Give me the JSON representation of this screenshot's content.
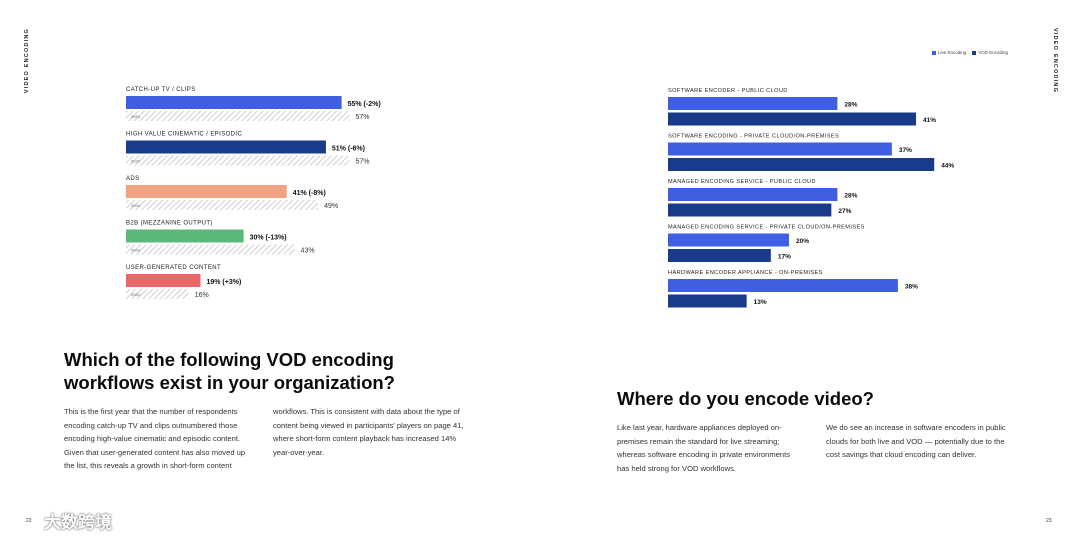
{
  "side_label": "VIDEO ENCODING",
  "page_numbers": {
    "left": "22",
    "right": "23"
  },
  "watermark": "大数跨境",
  "colors": {
    "catchup": "#3f5ee0",
    "cinematic": "#1a3a8a",
    "ads": "#f1a283",
    "b2b": "#5cb77a",
    "ugc": "#e8676b",
    "live": "#3f5ee0",
    "vod": "#1a3a8a",
    "prev_year_hatch": "#c8c8c8"
  },
  "left_section": {
    "heading": "Which of the following VOD encoding workflows exist in your organization?",
    "body_col1": "This is the first year that the number of respondents encoding catch-up TV and clips outnumbered those encoding high-value cinematic and episodic content. Given that user-generated content has also moved up the list, this reveals a growth in short-form content",
    "body_col2": "workflows. This is consistent with data about the type of content being viewed in participants' players on page 41, where short-form content playback has increased 14% year-over-year."
  },
  "right_section": {
    "heading": "Where do you encode video?",
    "body_col1": "Like last year, hardware appliances deployed on-premises remain the standard for live streaming; whereas software encoding in private environments has held strong for VOD workflows.",
    "body_col2": "We do see an increase in software encoders in public clouds for both live and VOD — potentially due to the cost savings that cloud encoding can deliver."
  },
  "chart_data": [
    {
      "type": "bar",
      "orientation": "horizontal",
      "title": "Which of the following VOD encoding workflows exist in your organization?",
      "categories": [
        "CATCH-UP TV / CLIPS",
        "HIGH VALUE CINEMATIC / EPISODIC",
        "ADS",
        "B2B (MEZZANINE OUTPUT)",
        "USER-GENERATED CONTENT"
      ],
      "series": [
        {
          "name": "2025",
          "values": [
            55,
            51,
            41,
            30,
            19
          ],
          "labels": [
            "55% (-2%)",
            "51% (-6%)",
            "41% (-8%)",
            "30% (-13%)",
            "19% (+3%)"
          ]
        },
        {
          "name": "2024",
          "values": [
            57,
            57,
            49,
            43,
            16
          ],
          "labels": [
            "57%",
            "57%",
            "49%",
            "43%",
            "16%"
          ]
        }
      ],
      "xlim": [
        0,
        100
      ]
    },
    {
      "type": "bar",
      "orientation": "horizontal",
      "title": "Where do you encode video?",
      "categories": [
        "SOFTWARE ENCODER - PUBLIC CLOUD",
        "SOFTWARE ENCODING - PRIVATE CLOUD/ON-PREMISES",
        "MANAGED ENCODING SERVICE - PUBLIC CLOUD",
        "MANAGED ENCODING SERVICE - PRIVATE CLOUD/ON-PREMISES",
        "HARDWARE ENCODER APPLIANCE - ON-PREMISES"
      ],
      "series": [
        {
          "name": "Live Encoding",
          "values": [
            28,
            37,
            28,
            20,
            38
          ],
          "labels": [
            "28%",
            "37%",
            "28%",
            "20%",
            "38%"
          ]
        },
        {
          "name": "VOD Encoding",
          "values": [
            41,
            44,
            27,
            17,
            13
          ],
          "labels": [
            "41%",
            "44%",
            "27%",
            "17%",
            "13%"
          ]
        }
      ],
      "legend": "top-right",
      "xlim": [
        0,
        100
      ]
    }
  ]
}
